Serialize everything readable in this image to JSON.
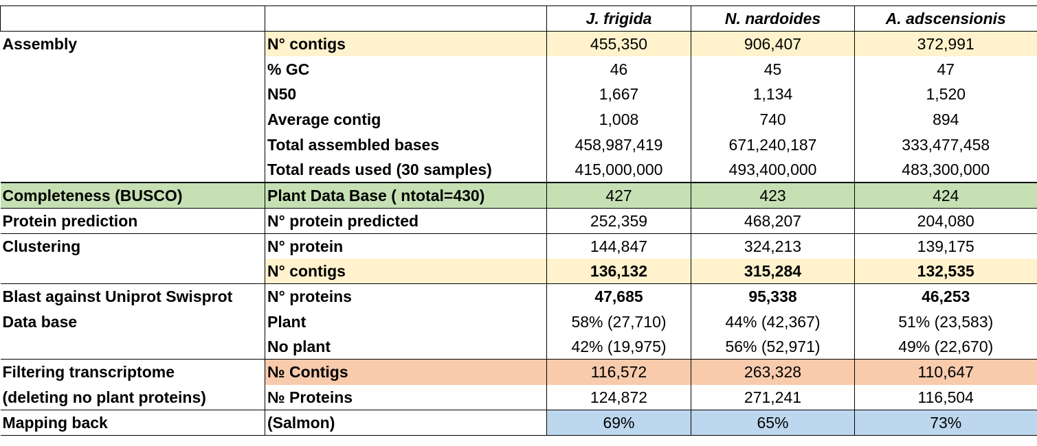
{
  "headers": [
    "",
    "",
    "J. frigida",
    "N.  nardoides",
    "A. adscensionis"
  ],
  "sections": {
    "assembly": "Assembly",
    "completeness": "Completeness (BUSCO)",
    "protein_prediction": "Protein prediction",
    "clustering": "Clustering",
    "blast_line1": "Blast against Uniprot Swisprot",
    "blast_line2": "Data base",
    "filtering_line1": "Filtering transcriptome",
    "filtering_line2": "(deleting no plant proteins)",
    "mapping": "Mapping back"
  },
  "rows": [
    {
      "label": "N° contigs",
      "values": [
        "455,350",
        "906,407",
        "372,991"
      ]
    },
    {
      "label": "% GC",
      "values": [
        "46",
        "45",
        "47"
      ]
    },
    {
      "label": "N50",
      "values": [
        "1,667",
        "1,134",
        "1,520"
      ]
    },
    {
      "label": "Average contig",
      "values": [
        "1,008",
        "740",
        "894"
      ]
    },
    {
      "label": "Total assembled bases",
      "values": [
        "458,987,419",
        "671,240,187",
        "333,477,458"
      ]
    },
    {
      "label": "Total reads used (30 samples)",
      "values": [
        "415,000,000",
        "493,400,000",
        "483,300,000"
      ]
    },
    {
      "label": "Plant Data Base ( ntotal=430)",
      "values": [
        "427",
        "423",
        "424"
      ]
    },
    {
      "label": "N° protein predicted",
      "values": [
        "252,359",
        "468,207",
        "204,080"
      ]
    },
    {
      "label": "N° protein",
      "values": [
        "144,847",
        "324,213",
        "139,175"
      ]
    },
    {
      "label": "N° contigs",
      "values": [
        "136,132",
        "315,284",
        "132,535"
      ]
    },
    {
      "label": "N° proteins",
      "values": [
        "47,685",
        "95,338",
        "46,253"
      ]
    },
    {
      "label": "Plant",
      "values": [
        "58% (27,710)",
        "44% (42,367)",
        "51% (23,583)"
      ]
    },
    {
      "label": "No plant",
      "values": [
        "42% (19,975)",
        "56% (52,971)",
        "49% (22,670)"
      ]
    },
    {
      "label": "№ Contigs",
      "values": [
        "116,572",
        "263,328",
        "110,647"
      ]
    },
    {
      "label": "№ Proteins",
      "values": [
        "124,872",
        "271,241",
        "116,504"
      ]
    },
    {
      "label": "(Salmon)",
      "values": [
        "69%",
        "65%",
        "73%"
      ]
    }
  ],
  "colors": {
    "highlight_yellow": "#fff2cc",
    "highlight_green": "#c6e0b4",
    "highlight_orange": "#f8cbad",
    "highlight_blue": "#bdd7ee"
  }
}
